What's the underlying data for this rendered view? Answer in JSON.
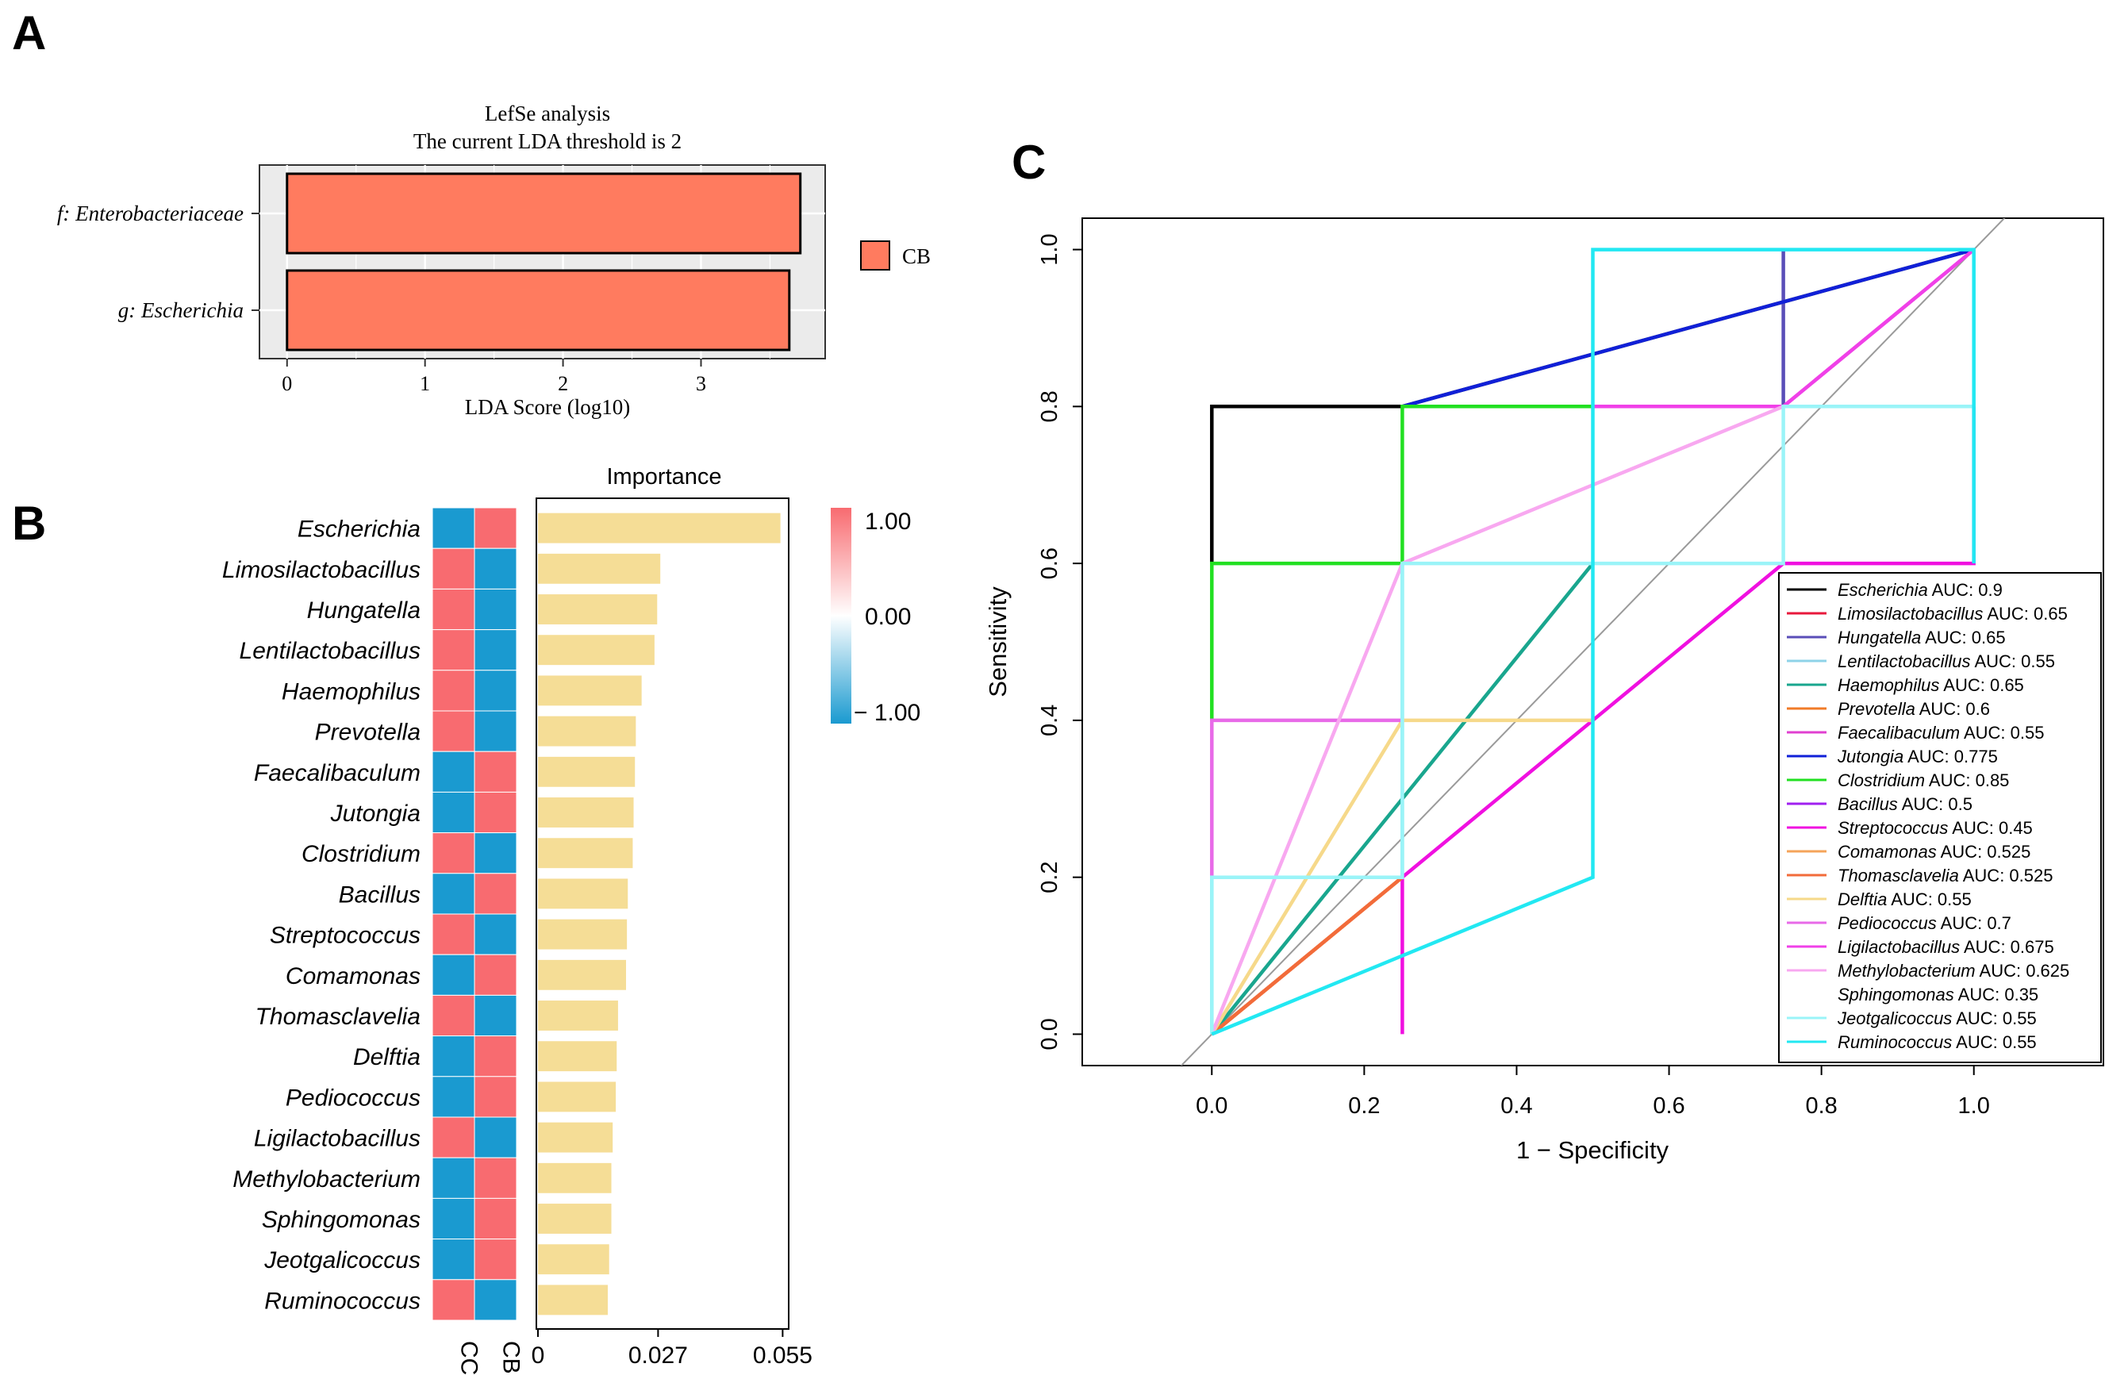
{
  "panels": {
    "a": {
      "letter": "A"
    },
    "b": {
      "letter": "B"
    },
    "c": {
      "letter": "C"
    }
  },
  "chart_data": [
    {
      "id": "lefse",
      "type": "bar",
      "orientation": "horizontal",
      "title": "LefSe analysis",
      "subtitle": "The current LDA threshold is 2",
      "categories": [
        "f: Enterobacteriaceae",
        "g: Escherichia"
      ],
      "values": [
        3.72,
        3.64
      ],
      "xlabel": "LDA Score (log10)",
      "xlim": [
        -0.2,
        3.9
      ],
      "xticks": [
        0,
        1,
        2,
        3
      ],
      "grid": true,
      "legend": [
        {
          "label": "CB",
          "color": "#FF7B5F"
        }
      ],
      "legend_position": "right",
      "color": "#FF7B5F"
    },
    {
      "id": "importance",
      "type": "heatmap",
      "title": "Importance",
      "rows": [
        "Escherichia",
        "Limosilactobacillus",
        "Hungatella",
        "Lentilactobacillus",
        "Haemophilus",
        "Prevotella",
        "Faecalibaculum",
        "Jutongia",
        "Clostridium",
        "Bacillus",
        "Streptococcus",
        "Comamonas",
        "Thomasclavelia",
        "Delftia",
        "Pediococcus",
        "Ligilactobacillus",
        "Methylobacterium",
        "Sphingomonas",
        "Jeotgalicoccus",
        "Ruminococcus"
      ],
      "columns": [
        "CC",
        "CB"
      ],
      "heat_values": [
        [
          -1,
          1
        ],
        [
          1,
          -1
        ],
        [
          1,
          -1
        ],
        [
          1,
          -1
        ],
        [
          1,
          -1
        ],
        [
          1,
          -1
        ],
        [
          -1,
          1
        ],
        [
          -1,
          1
        ],
        [
          1,
          -1
        ],
        [
          -1,
          1
        ],
        [
          1,
          -1
        ],
        [
          -1,
          1
        ],
        [
          1,
          -1
        ],
        [
          -1,
          1
        ],
        [
          -1,
          1
        ],
        [
          1,
          -1
        ],
        [
          -1,
          1
        ],
        [
          -1,
          1
        ],
        [
          -1,
          1
        ],
        [
          1,
          -1
        ]
      ],
      "importance_values": [
        0.0545,
        0.0275,
        0.0268,
        0.0262,
        0.0233,
        0.022,
        0.0218,
        0.0215,
        0.0213,
        0.0202,
        0.02,
        0.0198,
        0.018,
        0.0177,
        0.0175,
        0.0168,
        0.0165,
        0.0165,
        0.016,
        0.0157
      ],
      "importance_xticks": [
        "0",
        "0.027",
        "0.055"
      ],
      "importance_tick_values": [
        0,
        0.027,
        0.055
      ],
      "importance_xlim": [
        0,
        0.056
      ],
      "bar_color": "#F5DD96",
      "colorbar": {
        "labels": [
          "1.00",
          "0.00",
          "− 1.00"
        ],
        "high": "#F86B70",
        "mid": "#FFFFFF",
        "low": "#1A9AD0"
      }
    },
    {
      "id": "roc",
      "type": "line",
      "xlabel": "1 − Specificity",
      "ylabel": "Sensitivity",
      "xlim": [
        -0.17,
        1.17
      ],
      "ylim": [
        -0.04,
        1.04
      ],
      "xticks": [
        "0.0",
        "0.2",
        "0.4",
        "0.6",
        "0.8",
        "1.0"
      ],
      "yticks": [
        "0.0",
        "0.2",
        "0.4",
        "0.6",
        "0.8",
        "1.0"
      ],
      "diagonal": true,
      "legend_position": "right",
      "series": [
        {
          "name": "Escherichia",
          "auc_label": "AUC: 0.9",
          "color": "#000000",
          "x": [
            0,
            0,
            0.25,
            1
          ],
          "y": [
            0.6,
            0.8,
            0.8,
            1
          ]
        },
        {
          "name": "Limosilactobacillus",
          "auc_label": "AUC: 0.65",
          "color": "#E8193C",
          "x": [
            0,
            0.25,
            0.25
          ],
          "y": [
            0,
            0.2,
            0.2
          ]
        },
        {
          "name": "Hungatella",
          "auc_label": "AUC: 0.65",
          "color": "#5A4EB8",
          "x": [
            0.75,
            0.75
          ],
          "y": [
            0.8,
            1
          ]
        },
        {
          "name": "Lentilactobacillus",
          "auc_label": "AUC: 0.55",
          "color": "#8ED3E8",
          "x": [
            0,
            0,
            0.25,
            0.25
          ],
          "y": [
            0,
            0.2,
            0.2,
            0.6
          ]
        },
        {
          "name": "Haemophilus",
          "auc_label": "AUC: 0.65",
          "color": "#19A68E",
          "x": [
            0,
            0.5,
            0.5
          ],
          "y": [
            0,
            0.6,
            0.6
          ]
        },
        {
          "name": "Prevotella",
          "auc_label": "AUC: 0.6",
          "color": "#F07B28",
          "x": [
            0,
            0.25
          ],
          "y": [
            0,
            0.2
          ]
        },
        {
          "name": "Faecalibaculum",
          "auc_label": "AUC: 0.55",
          "color": "#E040D0",
          "x": [
            0.75,
            1
          ],
          "y": [
            0.8,
            1
          ]
        },
        {
          "name": "Jutongia",
          "auc_label": "AUC: 0.775",
          "color": "#1020D8",
          "x": [
            0.25,
            1
          ],
          "y": [
            0.8,
            1
          ]
        },
        {
          "name": "Clostridium",
          "auc_label": "AUC: 0.85",
          "color": "#22E022",
          "x": [
            0,
            0,
            0.25,
            0.25,
            0.5
          ],
          "y": [
            0.4,
            0.6,
            0.6,
            0.8,
            0.8
          ]
        },
        {
          "name": "Bacillus",
          "auc_label": "AUC: 0.5",
          "color": "#A020F0",
          "x": [
            0.75,
            0.75
          ],
          "y": [
            0.8,
            0.8
          ]
        },
        {
          "name": "Streptococcus",
          "auc_label": "AUC: 0.45",
          "color": "#F010E0",
          "x": [
            0.25,
            0.25,
            0.75,
            1,
            1
          ],
          "y": [
            0,
            0.2,
            0.6,
            0.6,
            0.8
          ]
        },
        {
          "name": "Comamonas",
          "auc_label": "AUC: 0.525",
          "color": "#F5A45A",
          "x": [
            0,
            0.25
          ],
          "y": [
            0,
            0.2
          ]
        },
        {
          "name": "Thomasclavelia",
          "auc_label": "AUC: 0.525",
          "color": "#F26B3A",
          "x": [
            0,
            0.25
          ],
          "y": [
            0,
            0.2
          ]
        },
        {
          "name": "Delftia",
          "auc_label": "AUC: 0.55",
          "color": "#F6D98A",
          "x": [
            0,
            0.25,
            0.5
          ],
          "y": [
            0,
            0.4,
            0.4
          ]
        },
        {
          "name": "Pediococcus",
          "auc_label": "AUC: 0.7",
          "color": "#E86AE8",
          "x": [
            0,
            0,
            0.25
          ],
          "y": [
            0.2,
            0.4,
            0.4
          ]
        },
        {
          "name": "Ligilactobacillus",
          "auc_label": "AUC: 0.675",
          "color": "#F040E8",
          "x": [
            0.5,
            0.75,
            0.75,
            1
          ],
          "y": [
            0.8,
            0.8,
            0.8,
            1
          ]
        },
        {
          "name": "Methylobacterium",
          "auc_label": "AUC: 0.625",
          "color": "#F8A8F0",
          "x": [
            0,
            0.25,
            0.75
          ],
          "y": [
            0,
            0.6,
            0.8
          ]
        },
        {
          "name": "Sphingomonas",
          "auc_label": "AUC: 0.35",
          "color": "#FFFFFF",
          "x": [
            0,
            0
          ],
          "y": [
            0,
            0
          ]
        },
        {
          "name": "Jeotgalicoccus",
          "auc_label": "AUC: 0.55",
          "color": "#9AF4F8",
          "x": [
            0,
            0,
            0.25,
            0.25,
            0.75,
            0.75,
            1
          ],
          "y": [
            0,
            0.2,
            0.2,
            0.6,
            0.6,
            0.8,
            0.8
          ]
        },
        {
          "name": "Ruminococcus",
          "auc_label": "AUC: 0.55",
          "color": "#22E8F2",
          "x": [
            0,
            0.25,
            0.5,
            0.5,
            1,
            1
          ],
          "y": [
            0,
            0.1,
            0.2,
            1,
            1,
            0.6
          ]
        }
      ]
    }
  ]
}
